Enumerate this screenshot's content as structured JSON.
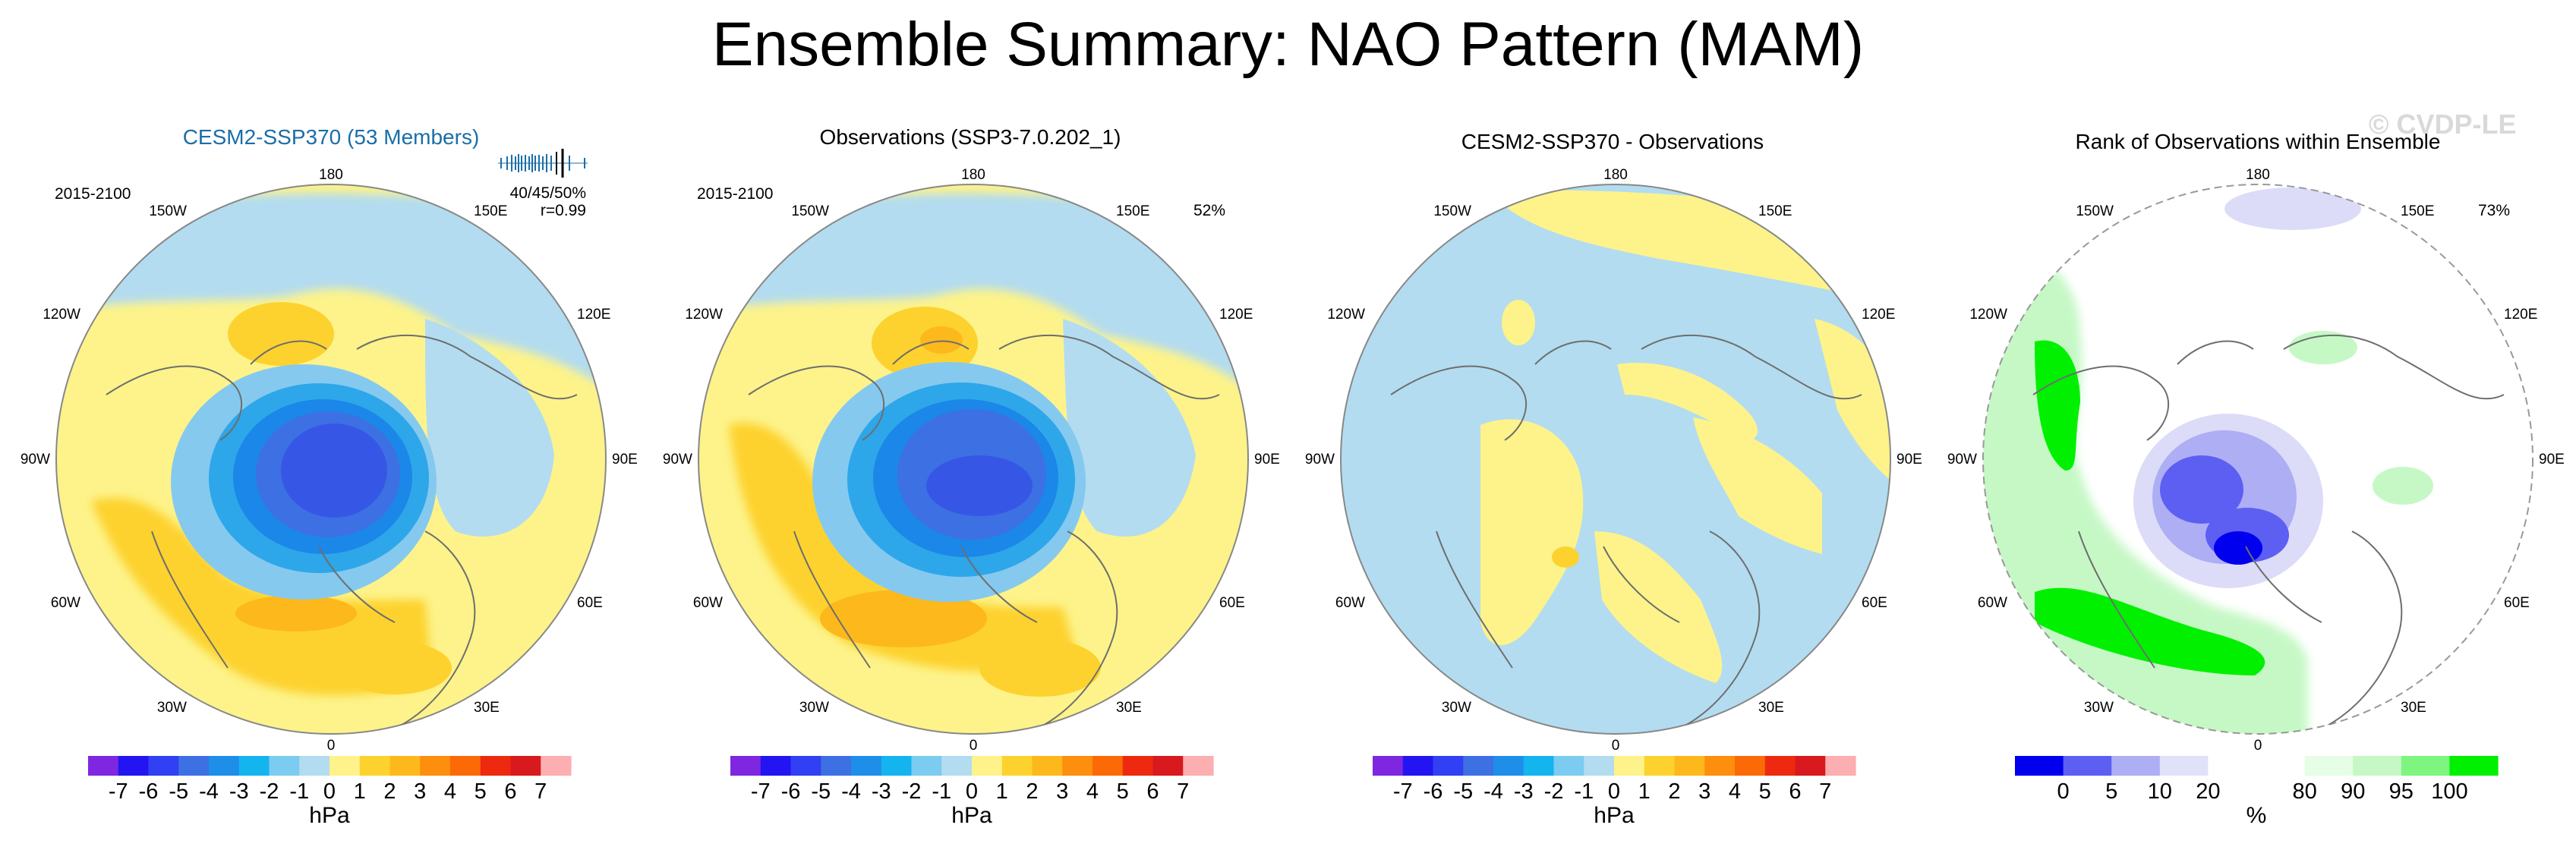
{
  "title": "Ensemble Summary: NAO Pattern (MAM)",
  "watermark": "© CVDP-LE",
  "colors": {
    "blue_light": "#b3dcf0",
    "blue_2": "#85c9ef",
    "blue_3": "#2ea6ea",
    "blue_4": "#1b87e8",
    "blue_5": "#3d70e3",
    "blue_6": "#3657e6",
    "yellow": "#fdf38a",
    "orange_1": "#fdd22f",
    "orange_2": "#fdb81c",
    "green": "#00f000",
    "green_mid": "#7ef57e",
    "green_light": "#c6f8c6",
    "rank_blue": "#0000ee",
    "rank_blue_mid": "#5c5ff2",
    "rank_blue_light": "#dcdcf8",
    "land_outline": "#6e6e6e",
    "panel_title_accent": "#1a6ea8"
  },
  "lon_labels": {
    "top": "180",
    "bottom": "0",
    "left": "90W",
    "right": "90E",
    "ul1": "150W",
    "ur1": "150E",
    "ul2": "120W",
    "ur2": "120E",
    "ll1": "60W",
    "lr1": "60E",
    "ll2": "30W",
    "lr2": "30E"
  },
  "panels": [
    {
      "title": "CESM2-SSP370 (53 Members)",
      "period": "2015-2100",
      "corner_pct": "",
      "stats": "40/45/50%",
      "corr": "r=0.99"
    },
    {
      "title": "Observations (SSP3-7.0.202_1)",
      "period": "2015-2100",
      "corner_pct": "52%",
      "stats": "",
      "corr": ""
    },
    {
      "title": "CESM2-SSP370 - Observations",
      "period": "",
      "corner_pct": "",
      "stats": "",
      "corr": ""
    },
    {
      "title": "Rank of Observations within Ensemble",
      "period": "",
      "corner_pct": "73%",
      "stats": "",
      "corr": ""
    }
  ],
  "colorbars": [
    {
      "unit": "hPa",
      "colors": [
        "#7f27e0",
        "#2315f2",
        "#3040f2",
        "#3d70e3",
        "#1e8ee8",
        "#14b4ef",
        "#7ccbf0",
        "#b3dcf0",
        "#fdf38a",
        "#fdd22f",
        "#fdb81c",
        "#fd8e0e",
        "#fb6a06",
        "#ed2a10",
        "#d8191d",
        "#fdaeb0"
      ],
      "ticks": [
        "-7",
        "-6",
        "-5",
        "-4",
        "-3",
        "-2",
        "-1",
        "0",
        "1",
        "2",
        "3",
        "4",
        "5",
        "6",
        "7"
      ]
    },
    {
      "unit": "hPa",
      "colors": [
        "#7f27e0",
        "#2315f2",
        "#3040f2",
        "#3d70e3",
        "#1e8ee8",
        "#14b4ef",
        "#7ccbf0",
        "#b3dcf0",
        "#fdf38a",
        "#fdd22f",
        "#fdb81c",
        "#fd8e0e",
        "#fb6a06",
        "#ed2a10",
        "#d8191d",
        "#fdaeb0"
      ],
      "ticks": [
        "-7",
        "-6",
        "-5",
        "-4",
        "-3",
        "-2",
        "-1",
        "0",
        "1",
        "2",
        "3",
        "4",
        "5",
        "6",
        "7"
      ]
    },
    {
      "unit": "hPa",
      "colors": [
        "#7f27e0",
        "#2315f2",
        "#3040f2",
        "#3d70e3",
        "#1e8ee8",
        "#14b4ef",
        "#7ccbf0",
        "#b3dcf0",
        "#fdf38a",
        "#fdd22f",
        "#fdb81c",
        "#fd8e0e",
        "#fb6a06",
        "#ed2a10",
        "#d8191d",
        "#fdaeb0"
      ],
      "ticks": [
        "-7",
        "-6",
        "-5",
        "-4",
        "-3",
        "-2",
        "-1",
        "0",
        "1",
        "2",
        "3",
        "4",
        "5",
        "6",
        "7"
      ]
    },
    {
      "unit": "%",
      "colors": [
        "#0000ee",
        "#5c5ff2",
        "#aeaef5",
        "#e1e1fa",
        "#ffffff",
        "#ffffff",
        "#e6fde6",
        "#c6f8c6",
        "#7ef57e",
        "#00f000"
      ],
      "ticks": [
        "0",
        "5",
        "10",
        "20",
        "80",
        "90",
        "95",
        "100"
      ]
    }
  ]
}
